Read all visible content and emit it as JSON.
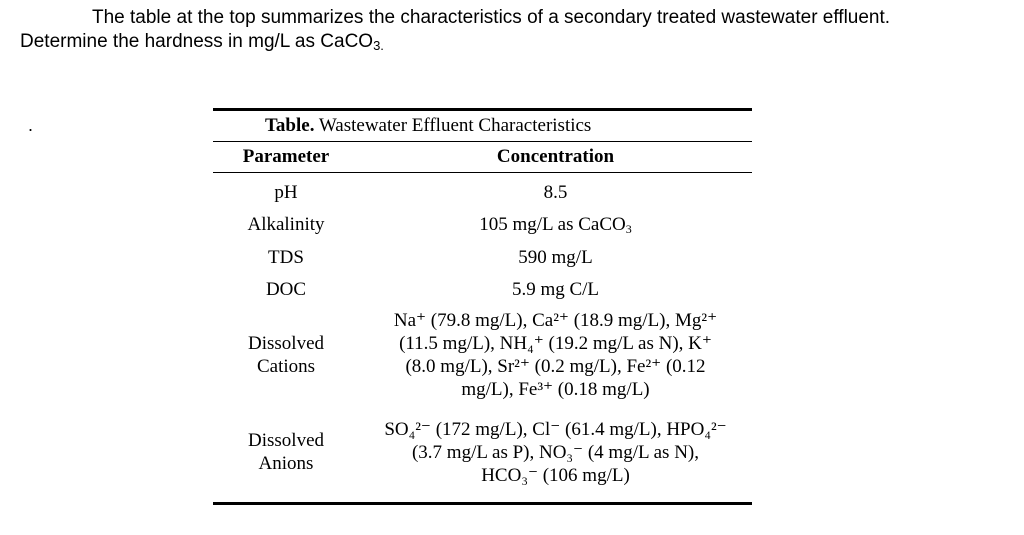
{
  "question": {
    "line1": "The table at the top summarizes the characteristics of a secondary treated wastewater effluent.",
    "line2_prefix": "Determine the hardness in mg/L as CaCO",
    "line2_sub": "3."
  },
  "bullet": ".",
  "table": {
    "caption_bold": "Table.",
    "caption_text": " Wastewater Effluent Characteristics",
    "headers": [
      "Parameter",
      "Concentration"
    ],
    "rows": [
      {
        "parameter": "pH",
        "concentration": "8.5"
      },
      {
        "parameter": "Alkalinity",
        "concentration_prefix": "105 mg/L as CaCO",
        "concentration_sub": "3"
      },
      {
        "parameter": "TDS",
        "concentration": "590 mg/L"
      },
      {
        "parameter": "DOC",
        "concentration": "5.9 mg C/L"
      }
    ],
    "cations": {
      "param_line1": "Dissolved",
      "param_line2": "Cations",
      "lines": [
        "Na⁺ (79.8 mg/L), Ca²⁺ (18.9 mg/L), Mg²⁺",
        "(11.5 mg/L), NH₄⁺ (19.2 mg/L as N), K⁺",
        "(8.0 mg/L), Sr²⁺ (0.2 mg/L), Fe²⁺ (0.12",
        "mg/L), Fe³⁺ (0.18 mg/L)"
      ]
    },
    "anions": {
      "param_line1": "Dissolved",
      "param_line2": "Anions",
      "lines": [
        "SO₄²⁻ (172 mg/L), Cl⁻ (61.4 mg/L), HPO₄²⁻",
        "(3.7 mg/L as P), NO₃⁻ (4 mg/L as N),",
        "HCO₃⁻ (106 mg/L)"
      ]
    }
  }
}
